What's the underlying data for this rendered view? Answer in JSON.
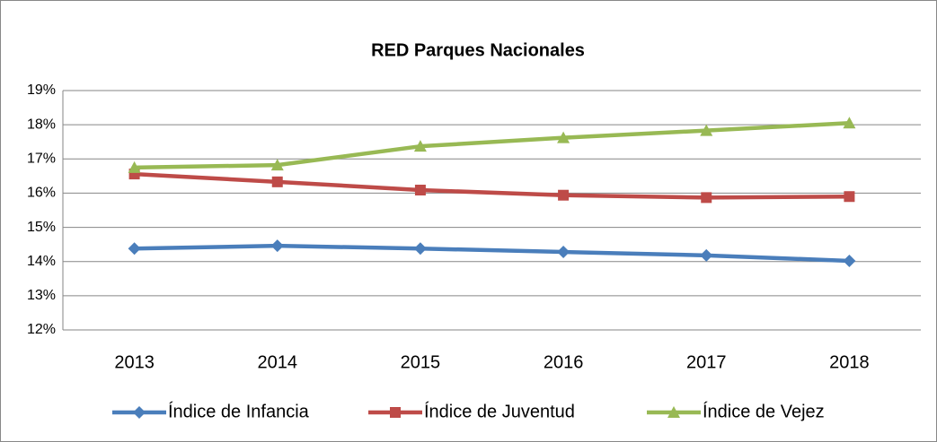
{
  "chart_data": {
    "type": "line",
    "title": "RED Parques Nacionales",
    "categories": [
      "2013",
      "2014",
      "2015",
      "2016",
      "2017",
      "2018"
    ],
    "series": [
      {
        "name": "Índice de Infancia",
        "color": "#4a7ebb",
        "marker": "diamond",
        "values": [
          14.38,
          14.46,
          14.38,
          14.28,
          14.18,
          14.02
        ]
      },
      {
        "name": "Índice de Juventud",
        "color": "#be4b48",
        "marker": "square",
        "values": [
          16.56,
          16.33,
          16.09,
          15.94,
          15.87,
          15.9
        ]
      },
      {
        "name": "Índice de Vejez",
        "color": "#98b954",
        "marker": "triangle",
        "values": [
          16.75,
          16.82,
          17.37,
          17.62,
          17.83,
          18.05
        ]
      }
    ],
    "ylim": [
      12,
      19
    ],
    "yticks": [
      {
        "value": 12,
        "label": "12%"
      },
      {
        "value": 13,
        "label": "13%"
      },
      {
        "value": 14,
        "label": "14%"
      },
      {
        "value": 15,
        "label": "15%"
      },
      {
        "value": 16,
        "label": "16%"
      },
      {
        "value": 17,
        "label": "17%"
      },
      {
        "value": 18,
        "label": "18%"
      },
      {
        "value": 19,
        "label": "19%"
      }
    ],
    "grid": true,
    "legend": "bottom"
  }
}
